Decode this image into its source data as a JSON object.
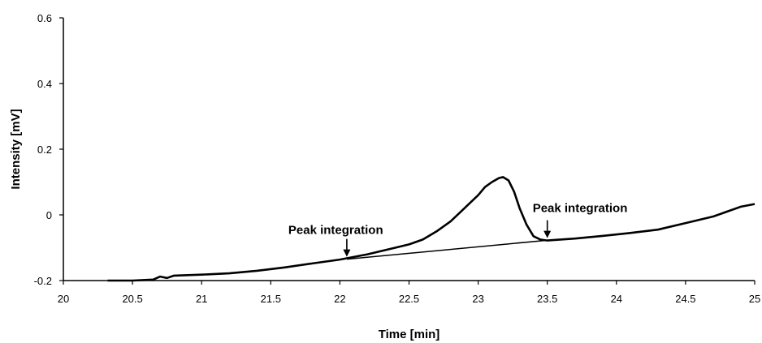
{
  "chart_data": {
    "type": "line",
    "title": "",
    "xlabel": "Time  [min]",
    "ylabel": "Intensity  [mV]",
    "xlim": [
      20,
      25
    ],
    "ylim": [
      -0.2,
      0.6
    ],
    "x_ticks": [
      20,
      20.5,
      21,
      21.5,
      22,
      22.5,
      23,
      23.5,
      24,
      24.5,
      25
    ],
    "x_tick_labels": [
      "20",
      "20.5",
      "21",
      "21.5",
      "22",
      "22.5",
      "23",
      "23.5",
      "24",
      "24.5",
      "25"
    ],
    "y_ticks": [
      -0.2,
      0,
      0.2,
      0.4,
      0.6
    ],
    "y_tick_labels": [
      "-0.2",
      "0",
      "0.2",
      "0.4",
      "0.6"
    ],
    "grid": false,
    "legend": "none",
    "series": [
      {
        "x": [
          20.32,
          20.5,
          20.65,
          20.7,
          20.75,
          20.8,
          21.0,
          21.2,
          21.4,
          21.6,
          21.8,
          22.0,
          22.2,
          22.4,
          22.5,
          22.6,
          22.7,
          22.8,
          22.9,
          23.0,
          23.05,
          23.1,
          23.15,
          23.18,
          23.22,
          23.26,
          23.3,
          23.35,
          23.4,
          23.45,
          23.5,
          23.7,
          23.9,
          24.1,
          24.3,
          24.5,
          24.7,
          24.9,
          25.0
        ],
        "y": [
          -0.2,
          -0.2,
          -0.197,
          -0.188,
          -0.192,
          -0.185,
          -0.182,
          -0.178,
          -0.17,
          -0.16,
          -0.148,
          -0.136,
          -0.12,
          -0.1,
          -0.09,
          -0.075,
          -0.05,
          -0.02,
          0.02,
          0.06,
          0.085,
          0.1,
          0.112,
          0.115,
          0.105,
          0.07,
          0.02,
          -0.03,
          -0.065,
          -0.075,
          -0.078,
          -0.072,
          -0.064,
          -0.055,
          -0.045,
          -0.025,
          -0.005,
          0.025,
          0.033
        ]
      }
    ],
    "baseline": {
      "x": [
        22.05,
        23.48
      ],
      "y": [
        -0.135,
        -0.078
      ]
    },
    "annotations": [
      {
        "text": "Peak integration",
        "x": 22.05,
        "arrow_y": -0.135
      },
      {
        "text": "Peak integration",
        "x": 23.5,
        "arrow_y": -0.078
      }
    ]
  }
}
